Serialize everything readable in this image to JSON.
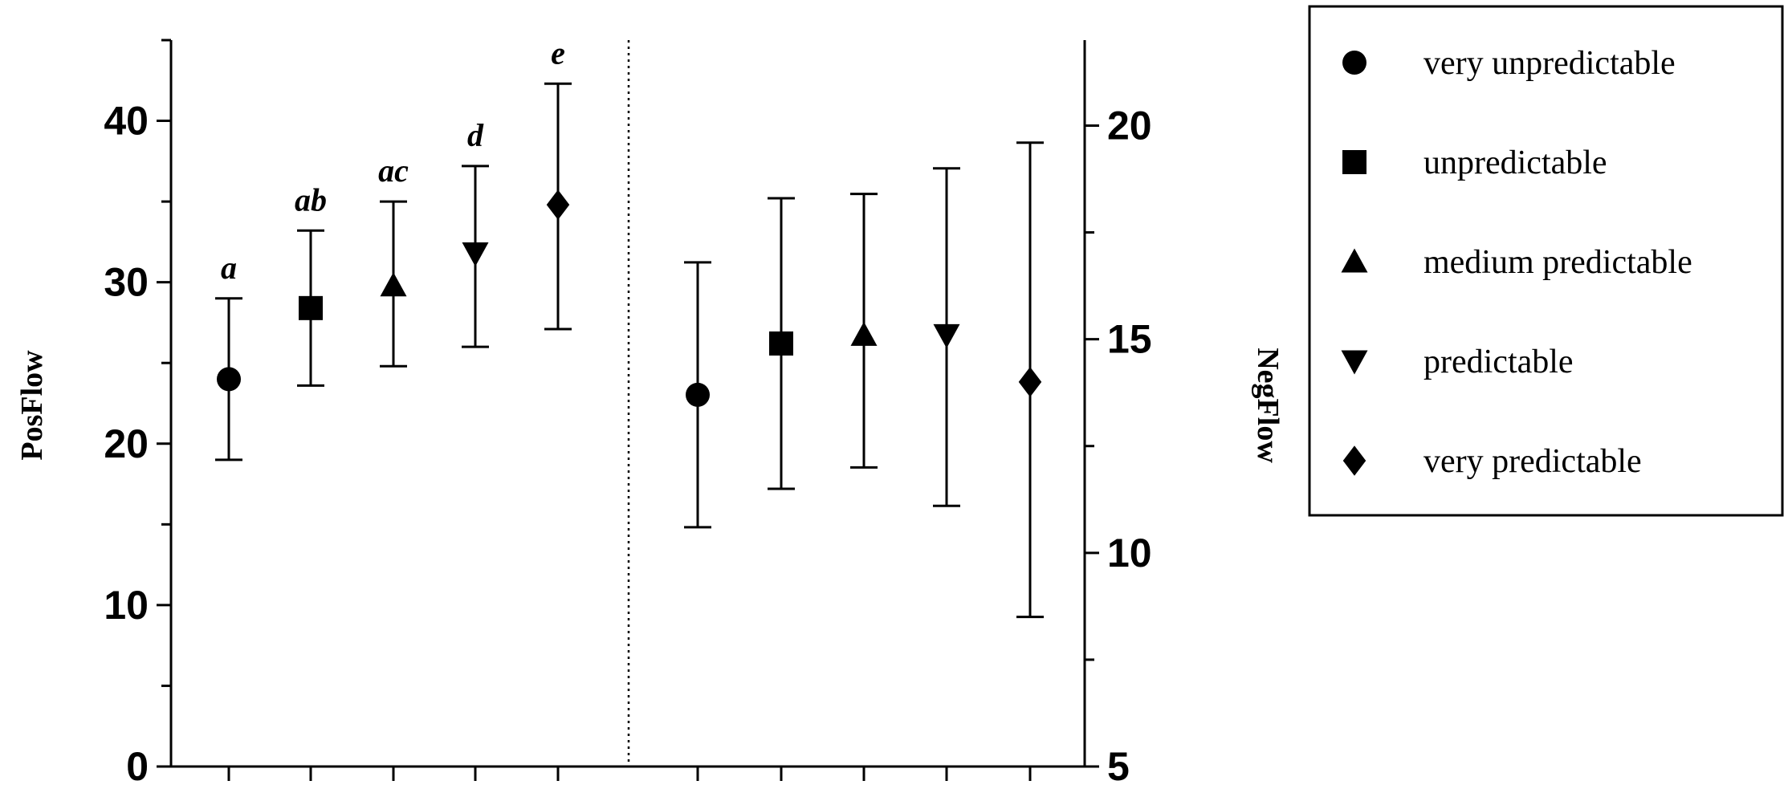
{
  "chart_data": {
    "type": "scatter",
    "left_panel": {
      "ylabel": "PosFlow",
      "ylim": [
        0,
        45
      ],
      "yticks": [
        0,
        10,
        20,
        30,
        40
      ],
      "points": [
        {
          "series": "very unpredictable",
          "mean": 24.0,
          "low": 19.0,
          "high": 29.0,
          "label": "a"
        },
        {
          "series": "unpredictable",
          "mean": 28.4,
          "low": 23.6,
          "high": 33.2,
          "label": "ab"
        },
        {
          "series": "medium predictable",
          "mean": 29.8,
          "low": 24.8,
          "high": 35.0,
          "label": "ac"
        },
        {
          "series": "predictable",
          "mean": 31.8,
          "low": 26.0,
          "high": 37.2,
          "label": "d"
        },
        {
          "series": "very predictable",
          "mean": 34.8,
          "low": 27.1,
          "high": 42.3,
          "label": "e"
        }
      ]
    },
    "right_panel": {
      "ylabel": "NegFlow",
      "ylim": [
        5,
        22
      ],
      "yticks": [
        5,
        10,
        15,
        20
      ],
      "points": [
        {
          "series": "very unpredictable",
          "mean": 13.7,
          "low": 10.6,
          "high": 16.8
        },
        {
          "series": "unpredictable",
          "mean": 14.9,
          "low": 11.5,
          "high": 18.3
        },
        {
          "series": "medium predictable",
          "mean": 15.1,
          "low": 12.0,
          "high": 18.4
        },
        {
          "series": "predictable",
          "mean": 15.1,
          "low": 11.1,
          "high": 19.0
        },
        {
          "series": "very predictable",
          "mean": 14.0,
          "low": 8.5,
          "high": 19.6
        }
      ]
    },
    "legend": {
      "placement": "top-right",
      "entries": [
        {
          "label": "very unpredictable",
          "marker": "circle"
        },
        {
          "label": "unpredictable",
          "marker": "square"
        },
        {
          "label": "medium predictable",
          "marker": "triangle-up"
        },
        {
          "label": "predictable",
          "marker": "triangle-down"
        },
        {
          "label": "very predictable",
          "marker": "diamond"
        }
      ]
    },
    "grid": false,
    "separator": "dotted vertical line between panels"
  }
}
